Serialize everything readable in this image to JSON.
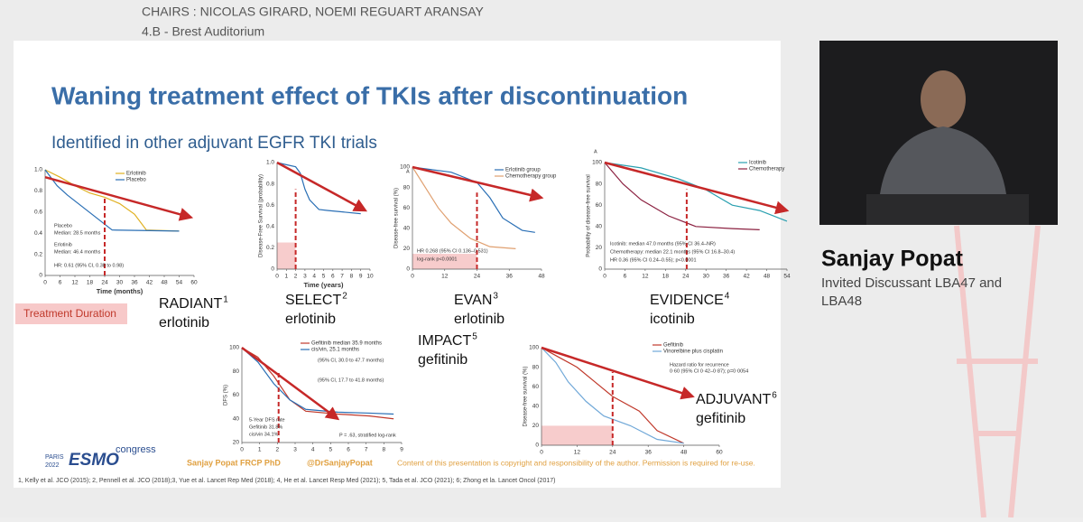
{
  "header": {
    "chairs": "CHAIRS : NICOLAS GIRARD, NOEMI REGUART ARANSAY",
    "room": "4.B - Brest Auditorium"
  },
  "slide": {
    "title": "Waning treatment effect of TKIs after discontinuation",
    "subtitle": "Identified in other adjuvant EGFR TKI trials",
    "treatment_duration": "Treatment Duration",
    "trials": [
      {
        "name": "RADIANT",
        "ref": "1",
        "drug": "erlotinib",
        "chart": {
          "xticks": [
            "0",
            "6",
            "12",
            "18",
            "24",
            "30",
            "36",
            "42",
            "48",
            "54",
            "60"
          ],
          "yticks": [
            "0",
            "0.2",
            "0.4",
            "0.6",
            "0.8",
            "1.0"
          ],
          "xlabel": "Time (months)",
          "legend": [
            "Erlotinib",
            "Placebo"
          ],
          "notes": [
            "Placebo",
            "Median: 28.5 months",
            "Erlotinib",
            "Median: 46.4 months",
            "HR: 0.61 (95% CI, 0.38 to 0.98)"
          ]
        }
      },
      {
        "name": "SELECT",
        "ref": "2",
        "drug": "erlotinib",
        "chart": {
          "xticks": [
            "0",
            "1",
            "2",
            "3",
            "4",
            "5",
            "6",
            "7",
            "8",
            "9",
            "10"
          ],
          "yticks": [
            "0",
            "0.2",
            "0.4",
            "0.6",
            "0.8",
            "1.0"
          ],
          "xlabel": "Time (years)",
          "ylabel": "Disease-Free Survival (probability)",
          "legend": [],
          "notes": []
        }
      },
      {
        "name": "EVAN",
        "ref": "3",
        "drug": "erlotinib",
        "chart": {
          "xticks": [
            "0",
            "12",
            "24",
            "36",
            "48"
          ],
          "yticks": [
            "0",
            "20",
            "40",
            "60",
            "80",
            "100"
          ],
          "ylabel": "Disease-free survival (%)",
          "legend": [
            "Erlotinib group",
            "Chemotherapy group"
          ],
          "notes": [
            "A",
            "HR 0.268 (95% CI 0.136–0.531)",
            "log-rank p<0.0001"
          ]
        }
      },
      {
        "name": "EVIDENCE",
        "ref": "4",
        "drug": "icotinib",
        "chart": {
          "xticks": [
            "0",
            "6",
            "12",
            "18",
            "24",
            "30",
            "36",
            "42",
            "48",
            "54"
          ],
          "yticks": [
            "0",
            "20",
            "40",
            "60",
            "80",
            "100"
          ],
          "ylabel": "Probability of disease-free survival",
          "legend": [
            "Icotinib",
            "Chemotherapy"
          ],
          "notes": [
            "A",
            "Icotinib: median 47.0 months (95% CI 36.4–NR)",
            "Chemotherapy: median 22.1 months (95% CI 16.8–30.4)",
            "HR 0.36 (95% CI 0.24–0.55); p<0.0001"
          ]
        }
      },
      {
        "name": "IMPACT",
        "ref": "5",
        "drug": "gefitinib",
        "chart": {
          "xticks": [
            "0",
            "1",
            "2",
            "3",
            "4",
            "5",
            "6",
            "7",
            "8",
            "9"
          ],
          "yticks": [
            "20",
            "40",
            "60",
            "80",
            "100"
          ],
          "ylabel": "DFS (%)",
          "legend": [
            "Gefitinib median 35.9 months",
            "cis/vin, 25.1 months"
          ],
          "notes": [
            "(95% CI, 30.0 to 47.7 months)",
            "(95% CI, 17.7 to 41.8 months)",
            "5-Year DFS rate",
            "Gefitinib  31.8%",
            "cis/vin    34.1%",
            "P = .63, stratified log-rank"
          ]
        }
      },
      {
        "name": "ADJUVANT",
        "ref": "6",
        "drug": "gefitinib",
        "chart": {
          "xticks": [
            "0",
            "12",
            "24",
            "36",
            "48",
            "60"
          ],
          "yticks": [
            "0",
            "20",
            "40",
            "60",
            "80",
            "100"
          ],
          "ylabel": "Disease-free survival (%)",
          "legend": [
            "Gefitinib",
            "Vinorelbine plus cisplatin"
          ],
          "notes": [
            "Hazard ratio for recurrence",
            "0·60 (95% CI 0·42–0·87); p=0·0054"
          ]
        }
      }
    ],
    "footer": {
      "logo": {
        "city": "PARIS",
        "year": "2022",
        "brand": "ESMO",
        "event": "congress"
      },
      "author": "Sanjay Popat FRCP PhD",
      "handle": "@DrSanjayPopat",
      "copyright": "Content of this presentation is copyright and responsibility of the author. Permission is required for re-use.",
      "references": "1, Kelly et al. JCO (2015); 2, Pennell et al. JCO (2018);3, Yue et al. Lancet Rep Med (2018); 4, He et al. Lancet Resp Med (2021); 5, Tada et al. JCO (2021); 6; Zhong et la. Lancet Oncol (2017)"
    }
  },
  "speaker": {
    "name": "Sanjay Popat",
    "role": [
      "Invited Discussant LBA47 and",
      "LBA48"
    ]
  }
}
